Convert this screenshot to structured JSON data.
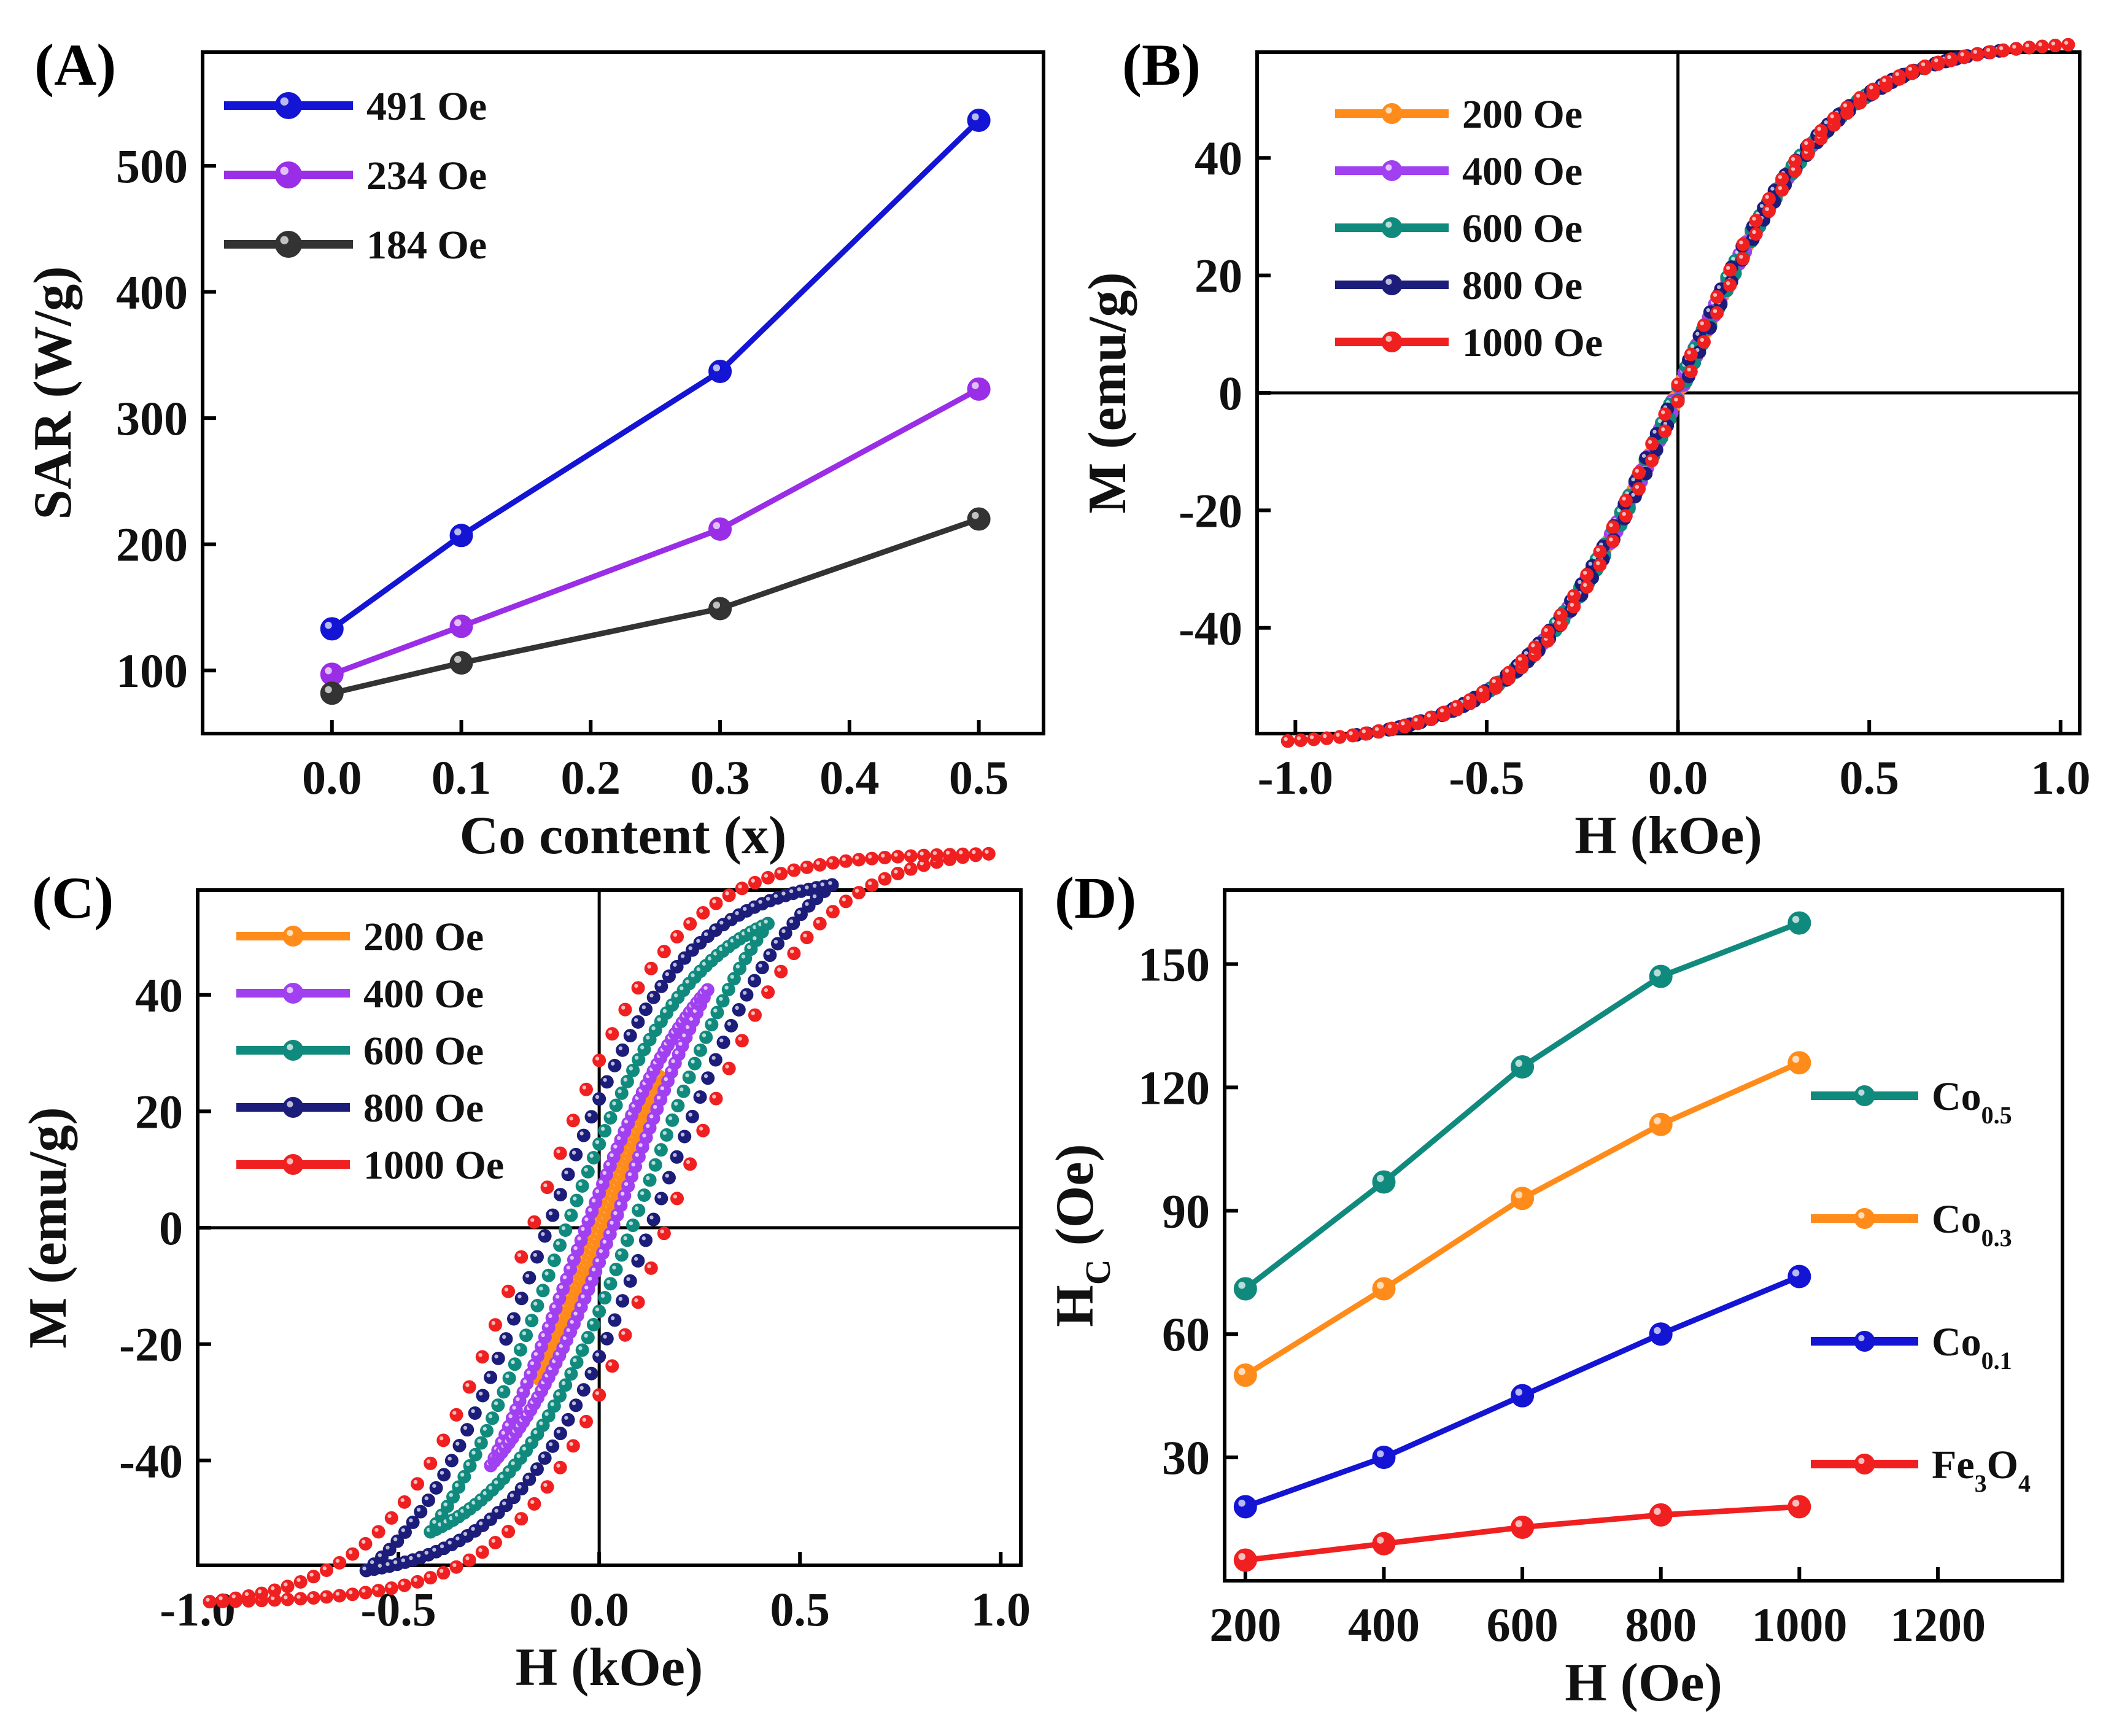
{
  "chart_data": [
    {
      "panel": "(A)",
      "type": "line",
      "xlabel": "Co content (x)",
      "ylabel": "SAR (W/g)",
      "xlim": [
        -0.1,
        0.55
      ],
      "ylim": [
        50,
        590
      ],
      "xticks": [
        0.0,
        0.1,
        0.2,
        0.3,
        0.4,
        0.5
      ],
      "xtick_labels": [
        "0.0",
        "0.1",
        "0.2",
        "0.3",
        "0.4",
        "0.5"
      ],
      "yticks": [
        100,
        200,
        300,
        400,
        500
      ],
      "ytick_labels": [
        "100",
        "200",
        "300",
        "400",
        "500"
      ],
      "legend_position": "top-left",
      "series": [
        {
          "name": "491 Oe",
          "color": "#1414d4",
          "x": [
            0.0,
            0.1,
            0.3,
            0.5
          ],
          "y": [
            133,
            207,
            337,
            536
          ]
        },
        {
          "name": "234 Oe",
          "color": "#9a2ee6",
          "x": [
            0.0,
            0.1,
            0.3,
            0.5
          ],
          "y": [
            97,
            135,
            212,
            323
          ]
        },
        {
          "name": "184 Oe",
          "color": "#333333",
          "x": [
            0.0,
            0.1,
            0.3,
            0.5
          ],
          "y": [
            82,
            106,
            149,
            220
          ]
        }
      ]
    },
    {
      "panel": "(B)",
      "type": "scatter",
      "xlabel": "H (kOe)",
      "ylabel": "M (emu/g)",
      "xlim": [
        -1.1,
        1.05
      ],
      "ylim": [
        -58,
        58
      ],
      "xticks": [
        -1.0,
        -0.5,
        0.0,
        0.5,
        1.0
      ],
      "xtick_labels": [
        "-1.0",
        "-0.5",
        "0.0",
        "0.5",
        "1.0"
      ],
      "yticks": [
        -40,
        -20,
        0,
        20,
        40
      ],
      "ytick_labels": [
        "-40",
        "-20",
        "0",
        "20",
        "40"
      ],
      "zero_lines": true,
      "legend_position": "top-left",
      "curve": {
        "saturation": 60,
        "coercivity_koe": 0.01,
        "width_koe": 0.4
      },
      "series": [
        {
          "name": "200 Oe",
          "color": "#ff8c1a",
          "hmax": 0.32
        },
        {
          "name": "400 Oe",
          "color": "#a040f0",
          "hmax": 0.48
        },
        {
          "name": "600 Oe",
          "color": "#118a7e",
          "hmax": 0.64
        },
        {
          "name": "800 Oe",
          "color": "#1c1c7a",
          "hmax": 0.84
        },
        {
          "name": "1000 Oe",
          "color": "#f02020",
          "hmax": 1.02
        }
      ]
    },
    {
      "panel": "(C)",
      "type": "scatter",
      "xlabel": "H (kOe)",
      "ylabel": "M (emu/g)",
      "xlim": [
        -1.0,
        1.05
      ],
      "ylim": [
        -58,
        58
      ],
      "xticks": [
        -1.0,
        -0.5,
        0.0,
        0.5,
        1.0
      ],
      "xtick_labels": [
        "-1.0",
        "-0.5",
        "0.0",
        "0.5",
        "1.0"
      ],
      "yticks": [
        -40,
        -20,
        0,
        20,
        40
      ],
      "ytick_labels": [
        "-40",
        "-20",
        "0",
        "20",
        "40"
      ],
      "zero_lines": true,
      "legend_position": "top-left",
      "curve": {
        "saturation": 65,
        "width_koe": 0.35
      },
      "series": [
        {
          "name": "200 Oe",
          "color": "#ff8c1a",
          "hmax": 0.15,
          "coercivity_koe": 0.04
        },
        {
          "name": "400 Oe",
          "color": "#a040f0",
          "hmax": 0.27,
          "coercivity_koe": 0.08
        },
        {
          "name": "600 Oe",
          "color": "#118a7e",
          "hmax": 0.42,
          "coercivity_koe": 0.12
        },
        {
          "name": "800 Oe",
          "color": "#1c1c7a",
          "hmax": 0.58,
          "coercivity_koe": 0.15
        },
        {
          "name": "1000 Oe",
          "color": "#f02020",
          "hmax": 0.97,
          "coercivity_koe": 0.17
        }
      ]
    },
    {
      "panel": "(D)",
      "type": "line",
      "xlabel": "H (Oe)",
      "ylabel": "H",
      "ylabel_sub": "C",
      "ylabel_suffix": " (Oe)",
      "xlim": [
        170,
        1380
      ],
      "ylim": [
        0,
        168
      ],
      "xticks": [
        200,
        400,
        600,
        800,
        1000,
        1200
      ],
      "xtick_labels": [
        "200",
        "400",
        "600",
        "800",
        "1000",
        "1200"
      ],
      "yticks": [
        30,
        60,
        90,
        120,
        150
      ],
      "ytick_labels": [
        "30",
        "60",
        "90",
        "120",
        "150"
      ],
      "legend_position": "right",
      "series": [
        {
          "name": "Co",
          "sub": "0.5",
          "color": "#118a7e",
          "x": [
            200,
            400,
            600,
            800,
            1000
          ],
          "y": [
            71,
            97,
            125,
            147,
            160
          ]
        },
        {
          "name": "Co",
          "sub": "0.3",
          "color": "#ff8c1a",
          "x": [
            200,
            400,
            600,
            800,
            1000
          ],
          "y": [
            50,
            71,
            93,
            111,
            126
          ]
        },
        {
          "name": "Co",
          "sub": "0.1",
          "color": "#1414d4",
          "x": [
            200,
            400,
            600,
            800,
            1000
          ],
          "y": [
            18,
            30,
            45,
            60,
            74
          ]
        },
        {
          "name": "Fe",
          "sub": "3",
          "name2": "O",
          "sub2": "4",
          "color": "#f02020",
          "x": [
            200,
            400,
            600,
            800,
            1000
          ],
          "y": [
            5,
            9,
            13,
            16,
            18
          ]
        }
      ]
    }
  ]
}
